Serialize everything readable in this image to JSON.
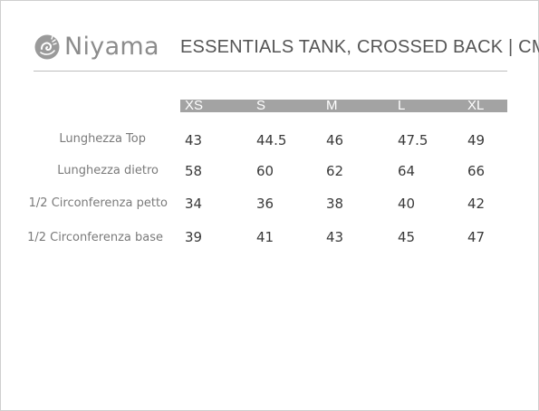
{
  "header": {
    "brand": "Niyama",
    "title": "ESSENTIALS TANK, CROSSED BACK | CM"
  },
  "table": {
    "sizes": [
      "XS",
      "S",
      "M",
      "L",
      "XL"
    ],
    "rows": [
      {
        "label": "Lunghezza Top",
        "values": [
          "43",
          "44.5",
          "46",
          "47.5",
          "49"
        ]
      },
      {
        "label": "Lunghezza  dietro",
        "values": [
          "58",
          "60",
          "62",
          "64",
          "66"
        ]
      },
      {
        "label": "1/2 Circonferenza petto",
        "values": [
          "34",
          "36",
          "38",
          "40",
          "42"
        ]
      },
      {
        "label": "1/2 Circonferenza base",
        "values": [
          "39",
          "41",
          "43",
          "45",
          "47"
        ]
      }
    ]
  },
  "colors": {
    "header_bar": "#a3a3a3",
    "brand_gray": "#8c8c8c",
    "rule": "#bdbdbd"
  },
  "icons": {
    "brand": "niyama-logo-icon"
  }
}
